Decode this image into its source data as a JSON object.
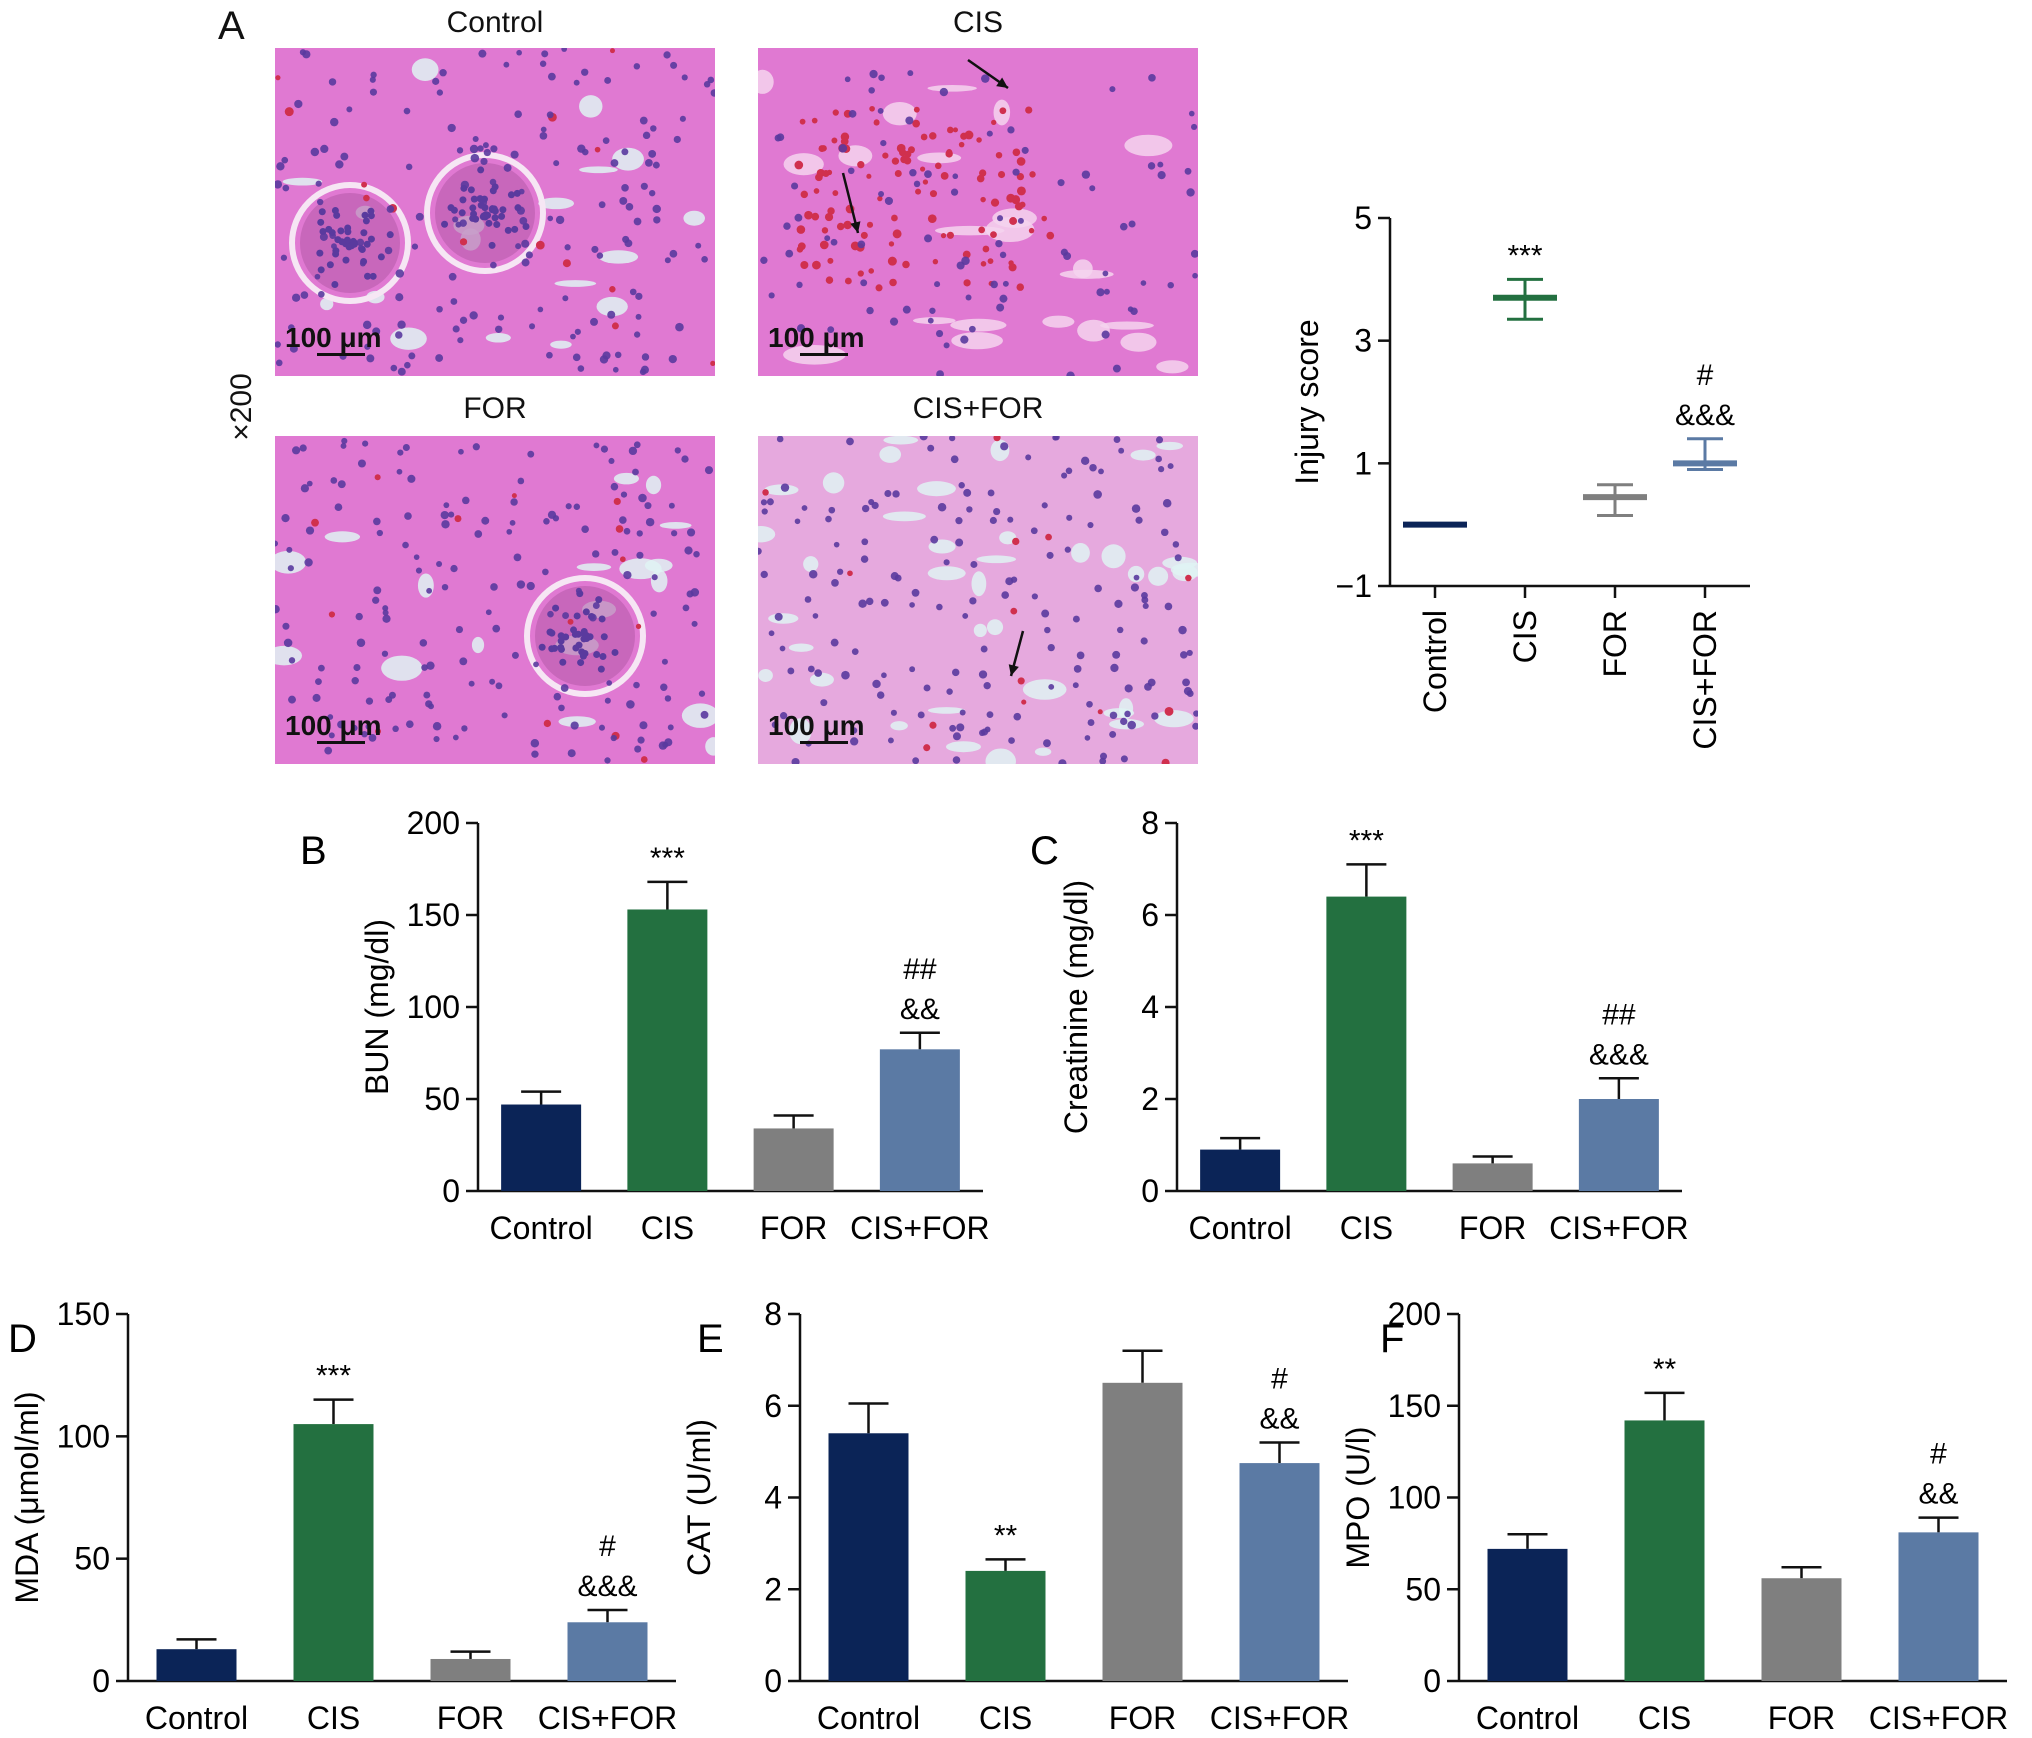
{
  "panel_a": {
    "letter": "A",
    "magnification": "×200",
    "micrographs": [
      {
        "title": "Control",
        "scale": "100 μm",
        "arrows": 0
      },
      {
        "title": "CIS",
        "scale": "100 μm",
        "arrows": 2
      },
      {
        "title": "FOR",
        "scale": "100 μm",
        "arrows": 0
      },
      {
        "title": "CIS+FOR",
        "scale": "100 μm",
        "arrows": 1
      }
    ]
  },
  "colors": {
    "Control": "#0b2457",
    "CIS": "#237040",
    "FOR": "#7f7f7f",
    "CIS+FOR": "#5b7aa4",
    "he_pink": "#e079d2",
    "he_nuclei": "#5a3a9e",
    "he_rbc": "#d0304e",
    "he_lumen": "#dff3f3"
  },
  "chart_data": [
    {
      "id": "injury",
      "letter": "",
      "type": "scatter",
      "ylabel": "Injury score",
      "categories": [
        "Control",
        "CIS",
        "FOR",
        "CIS+FOR"
      ],
      "yticks": [
        -1,
        1,
        3,
        5
      ],
      "ylim": [
        -1,
        5
      ],
      "values": [
        0,
        3.7,
        0.45,
        1.0
      ],
      "err_low": [
        0,
        3.35,
        0.15,
        0.9
      ],
      "err_high": [
        0,
        4.0,
        0.65,
        1.4
      ],
      "annotations": [
        [],
        [
          "***"
        ],
        [],
        [
          "#",
          "&&&"
        ]
      ]
    },
    {
      "id": "bun",
      "letter": "B",
      "type": "bar",
      "ylabel": "BUN (mg/dl)",
      "categories": [
        "Control",
        "CIS",
        "FOR",
        "CIS+FOR"
      ],
      "yticks": [
        0,
        50,
        100,
        150,
        200
      ],
      "ylim": [
        0,
        200
      ],
      "values": [
        47,
        153,
        34,
        77
      ],
      "errors": [
        7,
        15,
        7,
        9
      ],
      "annotations": [
        [],
        [
          "***"
        ],
        [],
        [
          "##",
          "&&"
        ]
      ]
    },
    {
      "id": "creatinine",
      "letter": "C",
      "type": "bar",
      "ylabel": "Creatinine (mg/dl)",
      "categories": [
        "Control",
        "CIS",
        "FOR",
        "CIS+FOR"
      ],
      "yticks": [
        0,
        2,
        4,
        6,
        8
      ],
      "ylim": [
        0,
        8
      ],
      "values": [
        0.9,
        6.4,
        0.6,
        2.0
      ],
      "errors": [
        0.25,
        0.7,
        0.15,
        0.45
      ],
      "annotations": [
        [],
        [
          "***"
        ],
        [],
        [
          "##",
          "&&&"
        ]
      ]
    },
    {
      "id": "mda",
      "letter": "D",
      "type": "bar",
      "ylabel": "MDA (μmol/ml)",
      "categories": [
        "Control",
        "CIS",
        "FOR",
        "CIS+FOR"
      ],
      "yticks": [
        0,
        50,
        100,
        150
      ],
      "ylim": [
        0,
        150
      ],
      "values": [
        13,
        105,
        9,
        24
      ],
      "errors": [
        4,
        10,
        3,
        5
      ],
      "annotations": [
        [],
        [
          "***"
        ],
        [],
        [
          "#",
          "&&&"
        ]
      ]
    },
    {
      "id": "cat",
      "letter": "E",
      "type": "bar",
      "ylabel": "CAT (U/ml)",
      "categories": [
        "Control",
        "CIS",
        "FOR",
        "CIS+FOR"
      ],
      "yticks": [
        0,
        2,
        4,
        6,
        8
      ],
      "ylim": [
        0,
        8
      ],
      "values": [
        5.4,
        2.4,
        6.5,
        4.75
      ],
      "errors": [
        0.65,
        0.25,
        0.7,
        0.45
      ],
      "annotations": [
        [],
        [
          "**"
        ],
        [],
        [
          "#",
          "&&"
        ]
      ]
    },
    {
      "id": "mpo",
      "letter": "F",
      "type": "bar",
      "ylabel": "MPO (U/l)",
      "categories": [
        "Control",
        "CIS",
        "FOR",
        "CIS+FOR"
      ],
      "yticks": [
        0,
        50,
        100,
        150,
        200
      ],
      "ylim": [
        0,
        200
      ],
      "values": [
        72,
        142,
        56,
        81
      ],
      "errors": [
        8,
        15,
        6,
        8
      ],
      "annotations": [
        [],
        [
          "**"
        ],
        [],
        [
          "#",
          "&&"
        ]
      ]
    }
  ]
}
